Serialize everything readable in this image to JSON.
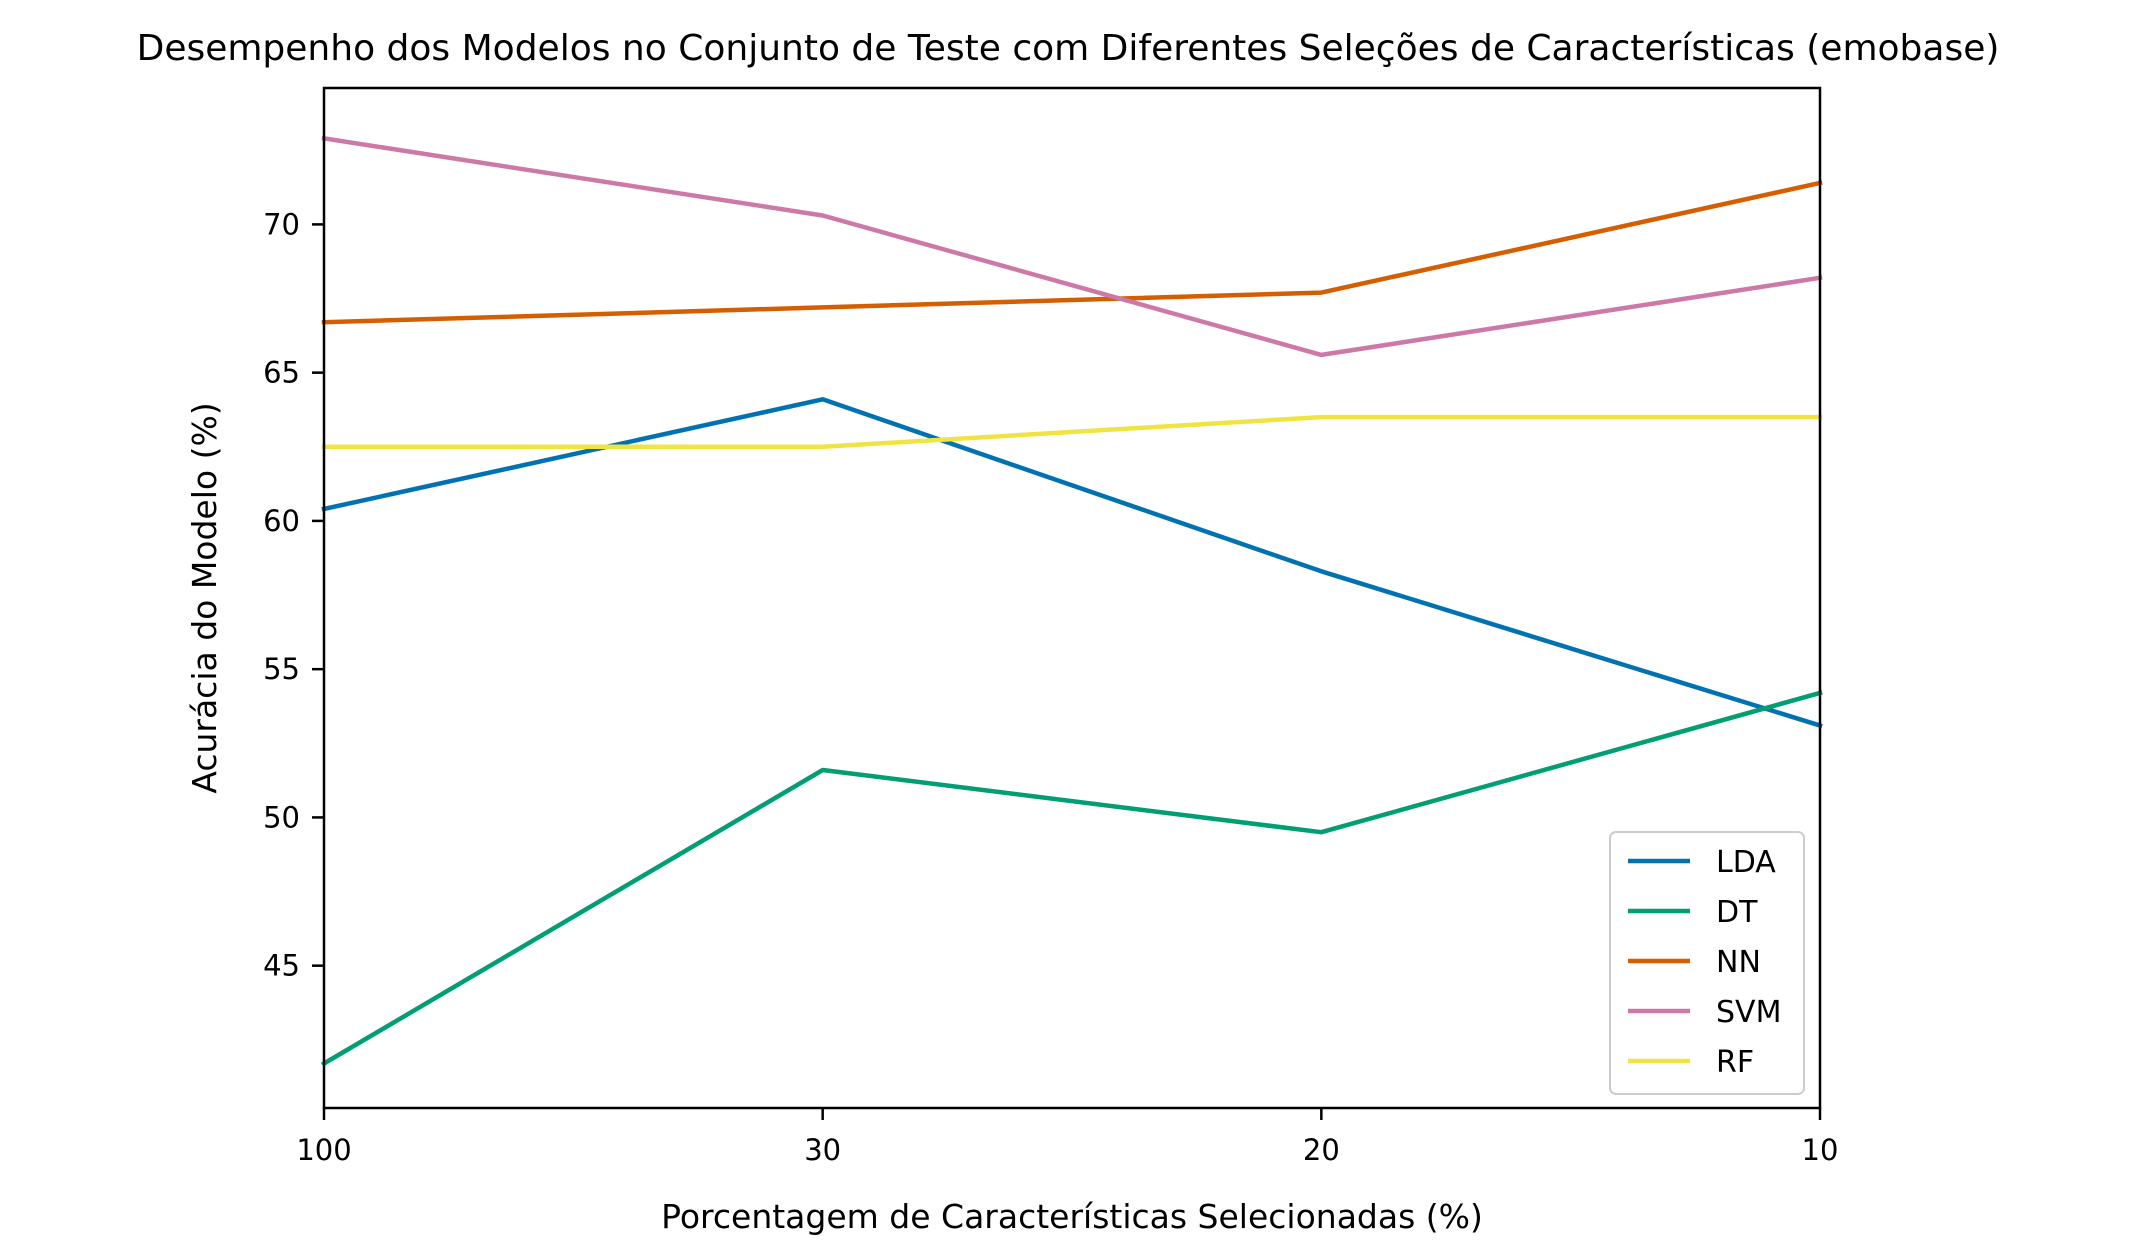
{
  "chart_data": {
    "type": "line",
    "title": "Desempenho dos Modelos no Conjunto de Teste com Diferentes Seleções de Características (emobase)",
    "xlabel": "Porcentagem de Características Selecionadas (%)",
    "ylabel": "Acurácia do Modelo (%)",
    "categories": [
      "100",
      "30",
      "20",
      "10"
    ],
    "ylim": [
      40.2,
      74.6
    ],
    "yticks": [
      45,
      50,
      55,
      60,
      65,
      70
    ],
    "grid": false,
    "legend_position": "lower-right",
    "series": [
      {
        "name": "LDA",
        "color": "#0072b2",
        "values": [
          60.4,
          64.1,
          58.3,
          53.1
        ]
      },
      {
        "name": "DT",
        "color": "#009e73",
        "values": [
          41.7,
          51.6,
          49.5,
          54.2
        ]
      },
      {
        "name": "NN",
        "color": "#d55e00",
        "values": [
          66.7,
          67.2,
          67.7,
          71.4
        ]
      },
      {
        "name": "SVM",
        "color": "#cc79a7",
        "values": [
          72.9,
          70.3,
          65.6,
          68.2
        ]
      },
      {
        "name": "RF",
        "color": "#f0e442",
        "values": [
          62.5,
          62.5,
          63.5,
          63.5
        ]
      }
    ]
  }
}
